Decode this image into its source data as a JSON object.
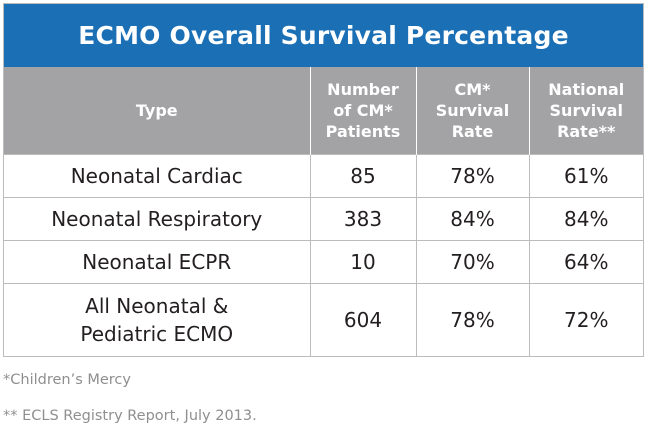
{
  "title": "ECMO Overall Survival Percentage",
  "headers": {
    "type": "Type",
    "patients": "Number\nof CM*\nPatients",
    "cm_rate": "CM*\nSurvival\nRate",
    "national_rate": "National\nSurvival\nRate**"
  },
  "rows": [
    {
      "type": "Neonatal Cardiac",
      "patients": "85",
      "cm_rate": "78%",
      "national_rate": "61%"
    },
    {
      "type": "Neonatal Respiratory",
      "patients": "383",
      "cm_rate": "84%",
      "national_rate": "84%"
    },
    {
      "type": "Neonatal ECPR",
      "patients": "10",
      "cm_rate": "70%",
      "national_rate": "64%"
    },
    {
      "type": "All Neonatal &\nPediatric ECMO",
      "patients": "604",
      "cm_rate": "78%",
      "national_rate": "72%"
    }
  ],
  "footnotes": {
    "cm": "*Children’s Mercy",
    "registry": "** ECLS Registry Report, July 2013."
  }
}
